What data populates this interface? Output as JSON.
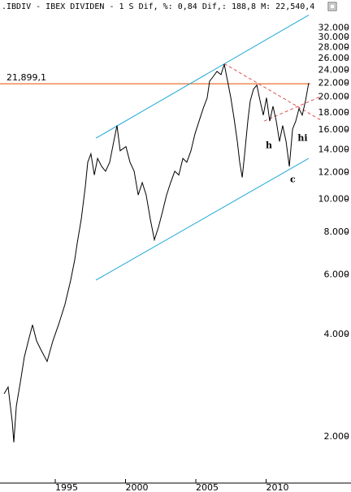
{
  "chart_data": {
    "type": "line",
    "title": ".IBDIV - IBEX DIVIDEN -  1 S Dif, %: 0,84 Dif,: 188,8 M: 22,540,4",
    "log_scale_y": true,
    "xlim": [
      1991.07,
      2013.9
    ],
    "ylim": [
      1460,
      35000
    ],
    "xticks": [
      1995,
      2000,
      2005,
      2010
    ],
    "yticks": [
      {
        "value": 2000,
        "label": "2.000"
      },
      {
        "value": 4000,
        "label": "4.000"
      },
      {
        "value": 6000,
        "label": "6.000"
      },
      {
        "value": 8000,
        "label": "8.000"
      },
      {
        "value": 10000,
        "label": "10.000"
      },
      {
        "value": 12000,
        "label": "12.000"
      },
      {
        "value": 14000,
        "label": "14.000"
      },
      {
        "value": 16000,
        "label": "16.000"
      },
      {
        "value": 18000,
        "label": "18.000"
      },
      {
        "value": 20000,
        "label": "20.000"
      },
      {
        "value": 22000,
        "label": "22.000"
      },
      {
        "value": 24000,
        "label": "24.000"
      },
      {
        "value": 26000,
        "label": "26.000"
      },
      {
        "value": 28000,
        "label": "28.000"
      },
      {
        "value": 30000,
        "label": "30.000"
      },
      {
        "value": 32000,
        "label": "32.000"
      }
    ],
    "x": [
      1991.36,
      1991.65,
      1991.94,
      1992.05,
      1992.23,
      1992.52,
      1992.8,
      1993.09,
      1993.38,
      1993.67,
      1993.96,
      1994.42,
      1994.83,
      1995.23,
      1995.69,
      1996.1,
      1996.39,
      1996.56,
      1996.85,
      1997.14,
      1997.31,
      1997.54,
      1997.78,
      1998.01,
      1998.3,
      1998.58,
      1998.87,
      1999.16,
      1999.39,
      1999.62,
      2000.03,
      2000.32,
      2000.61,
      2000.9,
      2001.19,
      2001.47,
      2001.76,
      2002.05,
      2002.34,
      2002.63,
      2002.92,
      2003.21,
      2003.5,
      2003.79,
      2004.08,
      2004.36,
      2004.65,
      2004.94,
      2005.23,
      2005.52,
      2005.81,
      2005.98,
      2006.21,
      2006.5,
      2006.79,
      2007.02,
      2007.26,
      2007.49,
      2007.72,
      2007.95,
      2008.12,
      2008.3,
      2008.47,
      2008.7,
      2008.87,
      2009.1,
      2009.34,
      2009.57,
      2009.8,
      2010.03,
      2010.26,
      2010.49,
      2010.72,
      2010.95,
      2011.18,
      2011.42,
      2011.65,
      2011.88,
      2012.11,
      2012.34,
      2012.57,
      2012.8,
      2013.03
    ],
    "series": [
      {
        "color": "#000000",
        "values": [
          2676,
          2800,
          2208,
          1925,
          2460,
          2900,
          3430,
          3830,
          4270,
          3830,
          3620,
          3330,
          3830,
          4270,
          4900,
          5780,
          6640,
          7420,
          8740,
          10900,
          12860,
          13620,
          11800,
          13200,
          12500,
          12100,
          12860,
          14800,
          16500,
          13900,
          14300,
          12860,
          12100,
          10300,
          11200,
          10300,
          8740,
          7600,
          8270,
          9200,
          10300,
          11200,
          12100,
          11800,
          13200,
          12860,
          13900,
          15600,
          17000,
          18500,
          19900,
          22300,
          22900,
          23800,
          23300,
          25000,
          22300,
          19900,
          17300,
          14800,
          12860,
          11600,
          13600,
          17000,
          19500,
          21100,
          21700,
          19500,
          17700,
          19900,
          17000,
          18800,
          17000,
          14800,
          16500,
          14800,
          12500,
          16100,
          17000,
          18500,
          17700,
          19500,
          22000
        ]
      }
    ],
    "hline": {
      "value": 21899.1,
      "label": "21,899,1",
      "color": "#e8601c"
    },
    "lines": [
      {
        "color": "#1fa8d8",
        "dashed": false,
        "x": [
          1997.89,
          2013.03
        ],
        "y": [
          15140,
          34900
        ]
      },
      {
        "color": "#1fa8d8",
        "dashed": false,
        "x": [
          1997.89,
          2013.03
        ],
        "y": [
          5780,
          13200
        ]
      },
      {
        "color": "#e05050",
        "dashed": true,
        "x": [
          2007.02,
          2013.9
        ],
        "y": [
          25100,
          17100
        ]
      },
      {
        "color": "#e05050",
        "dashed": true,
        "x": [
          2009.86,
          2013.9
        ],
        "y": [
          17000,
          20100
        ]
      }
    ],
    "annotations": [
      {
        "text": "h",
        "x": 2010.2,
        "y": 14400
      },
      {
        "text": "c",
        "x": 2011.9,
        "y": 11400
      },
      {
        "text": "hi",
        "x": 2012.6,
        "y": 15100
      }
    ],
    "annotation_color": "#c0202a"
  }
}
